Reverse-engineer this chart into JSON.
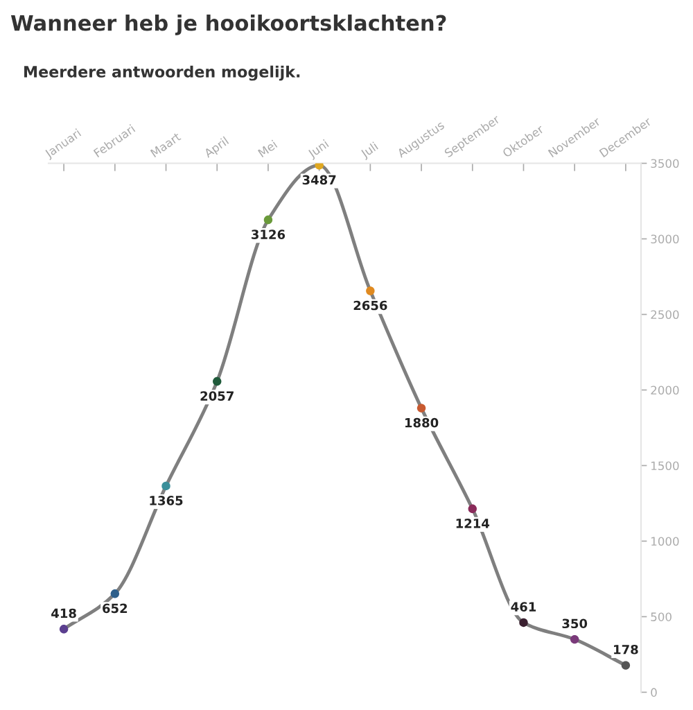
{
  "chart_data": {
    "type": "line",
    "title": "Wanneer heb je hooikoortsklachten?",
    "subtitle": "Meerdere antwoorden mogelijk.",
    "categories": [
      "Januari",
      "Februari",
      "Maart",
      "April",
      "Mei",
      "Juni",
      "Juli",
      "Augustus",
      "September",
      "Oktober",
      "November",
      "December"
    ],
    "series": [
      {
        "color": "#7f7f7f",
        "values": [
          418,
          652,
          1365,
          2057,
          3126,
          3487,
          2656,
          1880,
          1214,
          461,
          350,
          178
        ],
        "colors": [
          "#5b3f8f",
          "#2e5f8a",
          "#3a8f9a",
          "#1f5a3a",
          "#6a9a3a",
          "#e0a820",
          "#e08a20",
          "#c85a30",
          "#8a2a5a",
          "#3a2030",
          "#7a3a7a",
          "#555555"
        ]
      }
    ],
    "ylim": [
      0,
      3500
    ],
    "yticks": [
      0,
      500,
      1000,
      1500,
      2000,
      2500,
      3000,
      3500
    ],
    "data_labels": true,
    "marker": "circle",
    "grid": false,
    "legend": false
  }
}
